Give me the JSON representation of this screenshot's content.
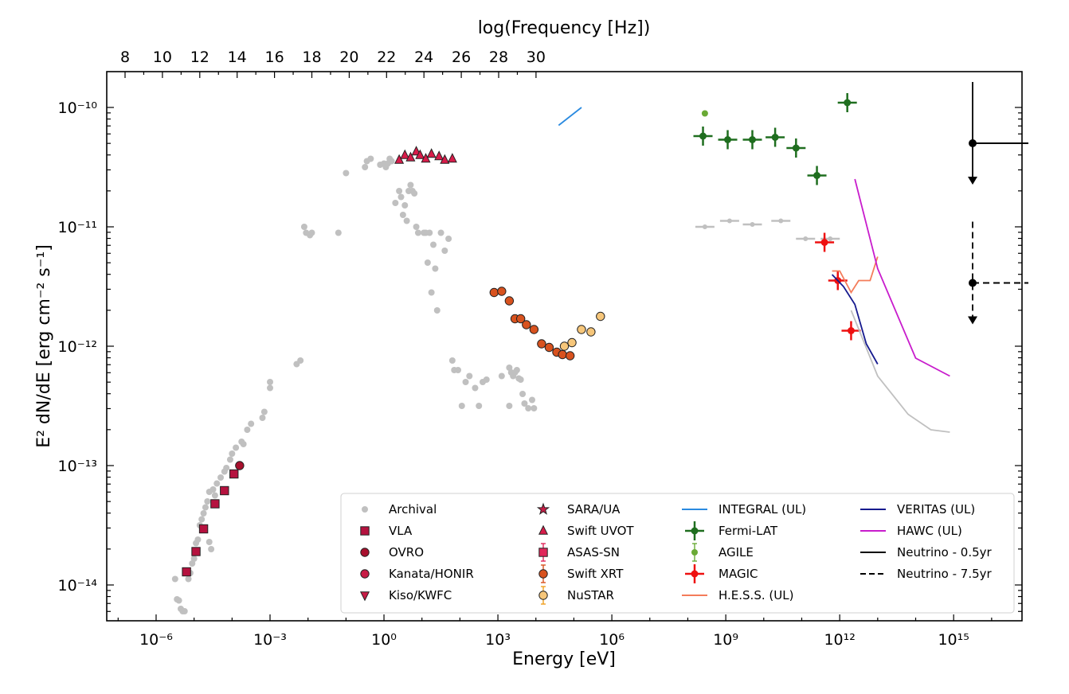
{
  "chart_data": {
    "type": "scatter",
    "title": "",
    "xlabel": "Energy [eV]",
    "ylabel": "E² dN/dE [erg cm⁻² s⁻¹]",
    "top_xlabel": "log(Frequency [Hz])",
    "xscale": "log",
    "yscale": "log",
    "xlim_log10": [
      -7.3,
      16.8
    ],
    "ylim_log10": [
      -14.3,
      -9.7
    ],
    "x_ticks": [
      {
        "exp": -6,
        "label": "10⁻⁶"
      },
      {
        "exp": -3,
        "label": "10⁻³"
      },
      {
        "exp": 0,
        "label": "10⁰"
      },
      {
        "exp": 3,
        "label": "10³"
      },
      {
        "exp": 6,
        "label": "10⁶"
      },
      {
        "exp": 9,
        "label": "10⁹"
      },
      {
        "exp": 12,
        "label": "10¹²"
      },
      {
        "exp": 15,
        "label": "10¹⁵"
      }
    ],
    "y_ticks": [
      {
        "exp": -14,
        "label": "10⁻¹⁴"
      },
      {
        "exp": -13,
        "label": "10⁻¹³"
      },
      {
        "exp": -12,
        "label": "10⁻¹²"
      },
      {
        "exp": -11,
        "label": "10⁻¹¹"
      },
      {
        "exp": -10,
        "label": "10⁻¹⁰"
      }
    ],
    "top_ticks": [
      "8",
      "10",
      "12",
      "14",
      "16",
      "18",
      "20",
      "22",
      "24",
      "26",
      "28",
      "30"
    ],
    "grid": false,
    "legend_position": "bottom-right",
    "legend_columns": [
      [
        {
          "label": "Archival",
          "marker": "dot",
          "color": "#c0c0c0"
        },
        {
          "label": "VLA",
          "marker": "square",
          "color": "#b5123f"
        },
        {
          "label": "OVRO",
          "marker": "circle",
          "color": "#a8102e"
        },
        {
          "label": "Kanata/HONIR",
          "marker": "circle",
          "color": "#c81c46"
        },
        {
          "label": "Kiso/KWFC",
          "marker": "tri-down",
          "color": "#c81c46"
        }
      ],
      [
        {
          "label": "SARA/UA",
          "marker": "star",
          "color": "#c81c46"
        },
        {
          "label": "Swift UVOT",
          "marker": "tri-up",
          "color": "#d81c4a"
        },
        {
          "label": "ASAS-SN",
          "marker": "square-err",
          "color": "#e0265a"
        },
        {
          "label": "Swift XRT",
          "marker": "circle-err",
          "color": "#d8521e"
        },
        {
          "label": "NuSTAR",
          "marker": "circle-err",
          "color": "#f6c67a",
          "errcolor": "#f0a020"
        }
      ],
      [
        {
          "label": "INTEGRAL (UL)",
          "marker": "line",
          "color": "#2a8ae0"
        },
        {
          "label": "Fermi-LAT",
          "marker": "cross",
          "color": "#1f6e1f"
        },
        {
          "label": "AGILE",
          "marker": "dot-err",
          "color": "#6aaa35"
        },
        {
          "label": "MAGIC",
          "marker": "cross",
          "color": "#ee1010"
        },
        {
          "label": "H.E.S.S. (UL)",
          "marker": "line",
          "color": "#f47c5a"
        }
      ],
      [
        {
          "label": "VERITAS (UL)",
          "marker": "line",
          "color": "#161a8e"
        },
        {
          "label": "HAWC (UL)",
          "marker": "line",
          "color": "#c81ccc"
        },
        {
          "label": "Neutrino - 0.5yr",
          "marker": "line",
          "color": "#000000"
        },
        {
          "label": "Neutrino - 7.5yr",
          "marker": "dash",
          "color": "#000000"
        }
      ]
    ],
    "series": [
      {
        "name": "Archival",
        "kind": "points",
        "color": "#c0c0c0",
        "x_log10": [
          -5.5,
          -5.45,
          -5.4,
          -5.35,
          -5.3,
          -5.25,
          -5.15,
          -5.1,
          -5.05,
          -5.0,
          -4.95,
          -4.9,
          -4.85,
          -4.8,
          -4.75,
          -4.7,
          -4.65,
          -4.6,
          -4.6,
          -4.55,
          -4.5,
          -4.45,
          -4.4,
          -4.3,
          -4.2,
          -4.15,
          -4.05,
          -4.0,
          -3.9,
          -3.75,
          -3.7,
          -3.6,
          -3.5,
          -3.2,
          -3.15,
          -3.0,
          -3.0,
          -2.3,
          -2.2,
          -2.1,
          -2.05,
          -1.95,
          -1.9,
          -1.2,
          -1.0,
          -0.5,
          -0.45,
          -0.35,
          -0.1,
          0.0,
          0.05,
          0.1,
          0.15,
          0.2,
          0.3,
          0.4,
          0.45,
          0.5,
          0.55,
          0.6,
          0.65,
          0.7,
          0.75,
          0.8,
          0.85,
          0.9,
          1.05,
          1.1,
          1.15,
          1.2,
          1.25,
          1.3,
          1.35,
          1.4,
          1.5,
          1.6,
          1.7,
          1.8,
          1.85,
          1.95,
          2.05,
          2.15,
          2.25,
          2.4,
          2.5,
          2.6,
          2.7,
          3.1,
          3.3,
          3.3,
          3.35,
          3.4,
          3.45,
          3.5,
          3.55,
          3.6,
          3.65,
          3.7,
          3.8,
          3.9,
          3.95
        ],
        "y_log10": [
          -13.95,
          -14.12,
          -14.13,
          -14.2,
          -14.22,
          -14.22,
          -13.95,
          -13.9,
          -13.82,
          -13.78,
          -13.65,
          -13.62,
          -13.5,
          -13.45,
          -13.4,
          -13.35,
          -13.3,
          -13.22,
          -13.64,
          -13.7,
          -13.2,
          -13.25,
          -13.15,
          -13.1,
          -13.05,
          -13.02,
          -12.95,
          -12.9,
          -12.85,
          -12.8,
          -12.82,
          -12.7,
          -12.65,
          -12.6,
          -12.55,
          -12.35,
          -12.3,
          -12.15,
          -12.12,
          -11.0,
          -11.05,
          -11.07,
          -11.05,
          -11.05,
          -10.55,
          -10.5,
          -10.45,
          -10.43,
          -10.48,
          -10.47,
          -10.5,
          -10.47,
          -10.43,
          -10.45,
          -10.8,
          -10.7,
          -10.75,
          -10.9,
          -10.82,
          -10.95,
          -10.7,
          -10.65,
          -10.7,
          -10.72,
          -11.0,
          -11.05,
          -11.05,
          -11.05,
          -11.3,
          -11.05,
          -11.55,
          -11.15,
          -11.35,
          -11.7,
          -11.05,
          -11.2,
          -11.1,
          -12.12,
          -12.2,
          -12.2,
          -12.5,
          -12.3,
          -12.25,
          -12.35,
          -12.5,
          -12.3,
          -12.28,
          -12.25,
          -12.5,
          -12.18,
          -12.22,
          -12.25,
          -12.22,
          -12.2,
          -12.27,
          -12.28,
          -12.4,
          -12.48,
          -12.52,
          -12.45,
          -12.52
        ]
      },
      {
        "name": "Archival (gamma)",
        "kind": "hbar",
        "color": "#c0c0c0",
        "x_log10": [
          8.45,
          9.1,
          9.7,
          10.45,
          11.1,
          11.75
        ],
        "y_log10": [
          -11.0,
          -10.95,
          -10.98,
          -10.95,
          -11.1,
          -11.1
        ]
      },
      {
        "name": "VLA",
        "kind": "points",
        "marker": "square",
        "color": "#b5123f",
        "x_log10": [
          -5.2,
          -4.95,
          -4.75,
          -4.45,
          -4.2,
          -3.95
        ],
        "y_log10": [
          -13.89,
          -13.72,
          -13.53,
          -13.32,
          -13.21,
          -13.07
        ]
      },
      {
        "name": "OVRO",
        "kind": "points",
        "marker": "circle",
        "color": "#a8102e",
        "x_log10": [
          -3.8
        ],
        "y_log10": [
          -13.0
        ]
      },
      {
        "name": "Optical",
        "kind": "points",
        "marker": "tri-up",
        "color": "#d81c4a",
        "x_log10": [
          0.4,
          0.55,
          0.7,
          0.85,
          0.95,
          1.1,
          1.25,
          1.45,
          1.6,
          1.8
        ],
        "y_log10": [
          -10.44,
          -10.4,
          -10.42,
          -10.37,
          -10.4,
          -10.43,
          -10.39,
          -10.41,
          -10.44,
          -10.43
        ]
      },
      {
        "name": "Swift XRT",
        "kind": "points",
        "marker": "circle",
        "color": "#d8521e",
        "x_log10": [
          2.9,
          3.1,
          3.3,
          3.45,
          3.6,
          3.75,
          3.95,
          4.15,
          4.35,
          4.55,
          4.7,
          4.9
        ],
        "y_log10": [
          -11.55,
          -11.54,
          -11.62,
          -11.77,
          -11.77,
          -11.82,
          -11.86,
          -11.98,
          -12.01,
          -12.05,
          -12.07,
          -12.08
        ]
      },
      {
        "name": "NuSTAR",
        "kind": "points",
        "marker": "circle",
        "color": "#f6c67a",
        "x_log10": [
          4.75,
          4.95,
          5.2,
          5.45,
          5.7
        ],
        "y_log10": [
          -12.0,
          -11.97,
          -11.86,
          -11.88,
          -11.75
        ]
      },
      {
        "name": "Fermi-LAT",
        "kind": "points",
        "marker": "cross",
        "color": "#1f6e1f",
        "x_log10": [
          8.4,
          9.05,
          9.7,
          10.3,
          10.85,
          11.4,
          12.2
        ],
        "y_log10": [
          -10.24,
          -10.27,
          -10.27,
          -10.25,
          -10.34,
          -10.57,
          -9.96
        ]
      },
      {
        "name": "AGILE",
        "kind": "points",
        "marker": "dot",
        "color": "#6aaa35",
        "x_log10": [
          8.45
        ],
        "y_log10": [
          -10.05
        ]
      },
      {
        "name": "MAGIC",
        "kind": "points",
        "marker": "cross",
        "color": "#ee1010",
        "x_log10": [
          11.6,
          11.95,
          12.3
        ],
        "y_log10": [
          -11.13,
          -11.45,
          -11.87
        ]
      },
      {
        "name": "INTEGRAL (UL)",
        "kind": "line",
        "color": "#2a8ae0",
        "x_log10": [
          4.6,
          5.2
        ],
        "y_log10": [
          -10.15,
          -10.0
        ]
      },
      {
        "name": "H.E.S.S. (UL)",
        "kind": "line",
        "color": "#f47c5a",
        "x_log10": [
          11.8,
          12.0,
          12.3,
          12.5,
          12.8,
          13.0
        ],
        "y_log10": [
          -11.37,
          -11.37,
          -11.55,
          -11.45,
          -11.45,
          -11.25
        ]
      },
      {
        "name": "VERITAS (UL)",
        "kind": "line",
        "color": "#161a8e",
        "x_log10": [
          11.8,
          12.1,
          12.4,
          12.7,
          13.0
        ],
        "y_log10": [
          -11.4,
          -11.5,
          -11.65,
          -11.98,
          -12.15
        ]
      },
      {
        "name": "HAWC (UL)",
        "kind": "line",
        "color": "#c81ccc",
        "x_log10": [
          12.4,
          13.0,
          14.0,
          14.9
        ],
        "y_log10": [
          -10.6,
          -11.35,
          -12.1,
          -12.25
        ]
      },
      {
        "name": "Archival VHE",
        "kind": "line",
        "color": "#c0c0c0",
        "x_log10": [
          12.3,
          13.0,
          13.8,
          14.4,
          14.9
        ],
        "y_log10": [
          -11.7,
          -12.25,
          -12.57,
          -12.7,
          -12.72
        ]
      },
      {
        "name": "Neutrino - 0.5yr",
        "kind": "ul",
        "color": "#000000",
        "x_log10": [
          15.5
        ],
        "y_log10": [
          -10.3
        ]
      },
      {
        "name": "Neutrino - 7.5yr",
        "kind": "ul-dash",
        "color": "#000000",
        "x_log10": [
          15.5
        ],
        "y_log10": [
          -11.47
        ]
      }
    ]
  }
}
